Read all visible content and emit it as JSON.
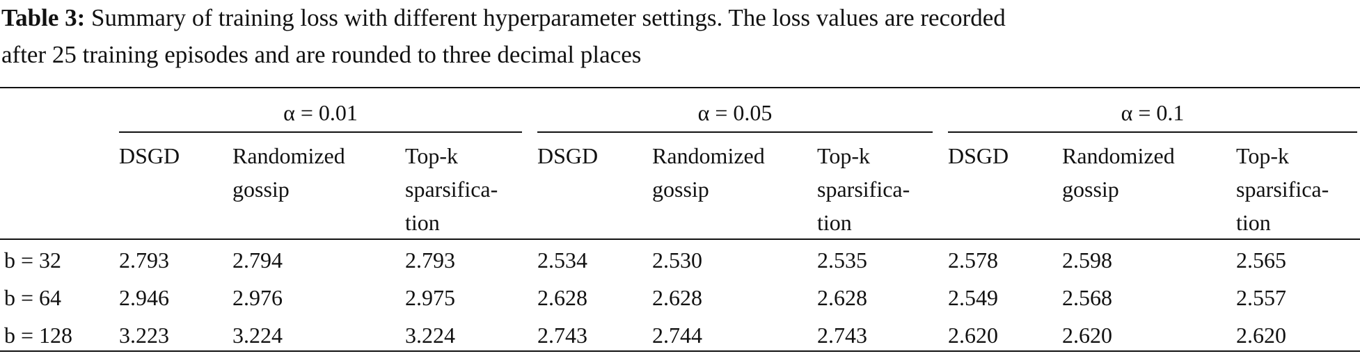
{
  "caption": {
    "label": "Table 3:",
    "text": "Summary of training loss with different hyperparameter settings. The loss values are recorded",
    "text_line2": "after 25 training episodes and are rounded to three decimal places"
  },
  "table": {
    "groups": [
      "α = 0.01",
      "α = 0.05",
      "α = 0.1"
    ],
    "subheaders": [
      [
        "DSGD"
      ],
      [
        "Randomized",
        "gossip"
      ],
      [
        "Top-k",
        "sparsifica-",
        "tion"
      ],
      [
        "DSGD"
      ],
      [
        "Randomized",
        "gossip"
      ],
      [
        "Top-k",
        "sparsifica-",
        "tion"
      ],
      [
        "DSGD"
      ],
      [
        "Randomized",
        "gossip"
      ],
      [
        "Top-k",
        "sparsifica-",
        "tion"
      ]
    ],
    "rows": [
      [
        "b = 32",
        "2.793",
        "2.794",
        "2.793",
        "2.534",
        "2.530",
        "2.535",
        "2.578",
        "2.598",
        "2.565"
      ],
      [
        "b = 64",
        "2.946",
        "2.976",
        "2.975",
        "2.628",
        "2.628",
        "2.628",
        "2.549",
        "2.568",
        "2.557"
      ],
      [
        "b = 128",
        "3.223",
        "3.224",
        "3.224",
        "2.743",
        "2.744",
        "2.743",
        "2.620",
        "2.620",
        "2.620"
      ]
    ]
  }
}
